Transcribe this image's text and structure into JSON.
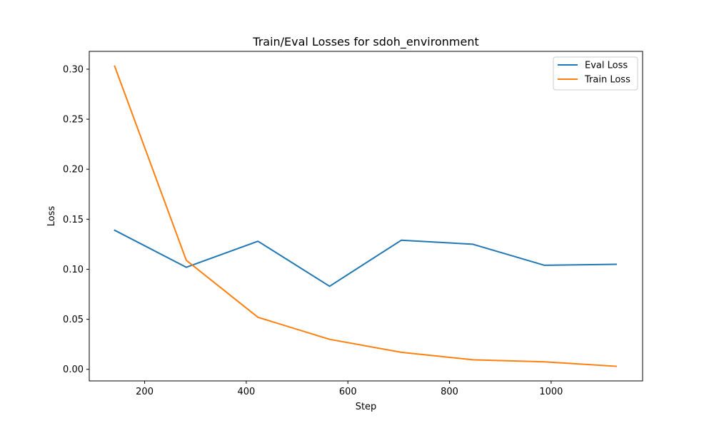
{
  "chart_data": {
    "type": "line",
    "title": "Train/Eval Losses for sdoh_environment",
    "xlabel": "Step",
    "ylabel": "Loss",
    "xlim": [
      91,
      1180
    ],
    "ylim": [
      -0.0116,
      0.3178
    ],
    "xticks": [
      200,
      400,
      600,
      800,
      1000
    ],
    "xtick_labels": [
      "200",
      "400",
      "600",
      "800",
      "1000"
    ],
    "yticks": [
      0.0,
      0.05,
      0.1,
      0.15,
      0.2,
      0.25,
      0.3
    ],
    "ytick_labels": [
      "0.00",
      "0.05",
      "0.10",
      "0.15",
      "0.20",
      "0.25",
      "0.30"
    ],
    "grid": false,
    "legend_position": "top-right",
    "series": [
      {
        "name": "Eval Loss",
        "color": "#1f77b4",
        "x": [
          141,
          282,
          423,
          564,
          705,
          846,
          987,
          1128
        ],
        "y": [
          0.139,
          0.102,
          0.128,
          0.083,
          0.129,
          0.125,
          0.104,
          0.105
        ]
      },
      {
        "name": "Train Loss",
        "color": "#ff7f0e",
        "x": [
          141,
          282,
          423,
          564,
          705,
          846,
          987,
          1128
        ],
        "y": [
          0.303,
          0.109,
          0.052,
          0.03,
          0.017,
          0.0095,
          0.0075,
          0.003
        ]
      }
    ]
  }
}
